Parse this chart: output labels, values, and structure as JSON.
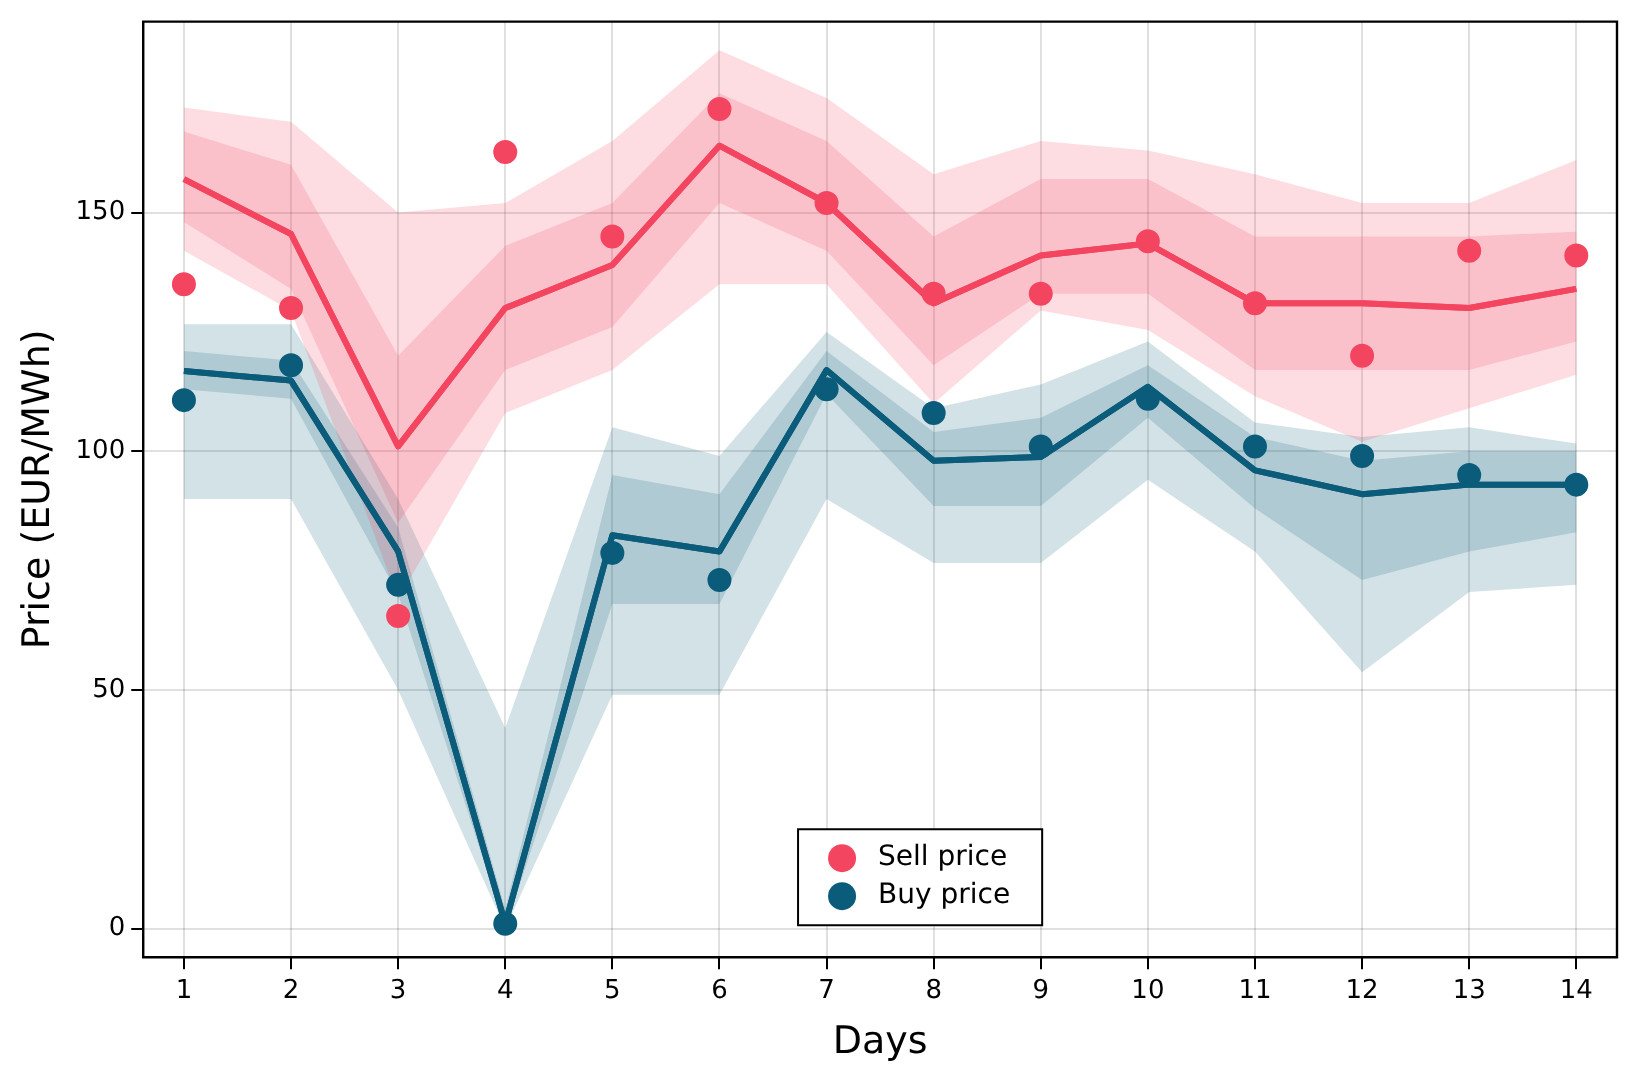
{
  "chart_data": {
    "type": "line",
    "xlabel": "Days",
    "ylabel": "Price (EUR/MWh)",
    "x": [
      1,
      2,
      3,
      4,
      5,
      6,
      7,
      8,
      9,
      10,
      11,
      12,
      13,
      14
    ],
    "xlim": [
      0.62,
      14.38
    ],
    "xticks": [
      1,
      2,
      3,
      4,
      5,
      6,
      7,
      8,
      9,
      10,
      11,
      12,
      13,
      14
    ],
    "ylim": [
      -6,
      190
    ],
    "yticks": [
      0,
      50,
      100,
      150
    ],
    "grid": true,
    "legend": "bottom",
    "series": [
      {
        "color": "#f44560",
        "marker": "none",
        "values": [
          157,
          145.5,
          101,
          130,
          139,
          164,
          152,
          131,
          141,
          143.5,
          131,
          131,
          130,
          134
        ],
        "lower": [
          148,
          134,
          85,
          117,
          126,
          152,
          142,
          118,
          133,
          133,
          117,
          117,
          117,
          123
        ],
        "upper": [
          167,
          160,
          120,
          143,
          152,
          175,
          165,
          145,
          157,
          157,
          145,
          145,
          145,
          146
        ]
      },
      {
        "color": "#0b5c7a",
        "marker": "none",
        "values": [
          116.8,
          114.8,
          79,
          1,
          82.4,
          79,
          117,
          98,
          98.8,
          113.5,
          96,
          91,
          93,
          93
        ],
        "lower": [
          113,
          111,
          70,
          0,
          68,
          68,
          112,
          88.5,
          88.5,
          107,
          88,
          73,
          79,
          83
        ],
        "upper": [
          121,
          119,
          84,
          4,
          95,
          91,
          121,
          104,
          107,
          118,
          103,
          98,
          100,
          100
        ]
      },
      {
        "color": "#0b5c7a",
        "marker": "none",
        "values": [
          116.8,
          114.8,
          79,
          1,
          82.4,
          79,
          117,
          98,
          98.8,
          113.5,
          96,
          91,
          93,
          93
        ],
        "lower": [
          90,
          90,
          50,
          0,
          49,
          49,
          90,
          76.6,
          76.6,
          94,
          79,
          53.7,
          70.5,
          72
        ],
        "upper": [
          126.6,
          126.6,
          90,
          42,
          105,
          99,
          125,
          109,
          114,
          123,
          106,
          103,
          105,
          101.6
        ]
      },
      {
        "color": "#f44560",
        "marker": "none",
        "values": [
          157,
          145.5,
          101,
          130,
          139,
          164,
          152,
          131,
          141,
          143.5,
          131,
          131,
          130,
          134
        ],
        "lower": [
          142,
          129.5,
          69,
          108,
          117,
          135,
          135,
          110,
          129.5,
          125.4,
          111.5,
          102,
          109,
          116
        ],
        "upper": [
          172,
          169,
          150,
          152,
          165,
          184,
          174,
          158,
          165,
          163,
          158,
          152,
          152,
          161
        ]
      },
      {
        "type": "scatter",
        "name": "Sell price",
        "color": "#f44560",
        "marker": "circle",
        "values": [
          135,
          130,
          65.5,
          162.7,
          145,
          171.7,
          152,
          133,
          133,
          144,
          131,
          120,
          142,
          141
        ]
      },
      {
        "type": "scatter",
        "name": "Buy price",
        "color": "#0b5c7a",
        "marker": "circle",
        "values": [
          110.7,
          118,
          72,
          1,
          78.7,
          73,
          113,
          108,
          101,
          111,
          101,
          99,
          95,
          93
        ]
      }
    ]
  }
}
